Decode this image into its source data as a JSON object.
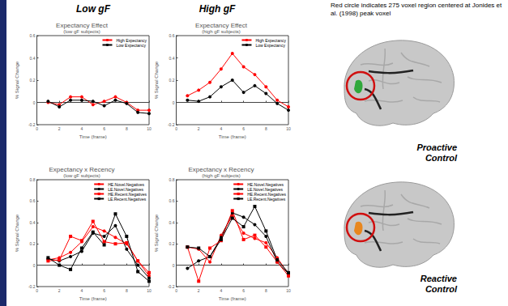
{
  "page": {
    "headings": [
      "Low gF",
      "High gF"
    ],
    "note": "Red circle indicates 275 voxel region centered at Jonides et al. (1998) peak voxel",
    "brain_labels": [
      "Proactive Control",
      "Reactive Control"
    ]
  },
  "chart_data": [
    {
      "type": "line",
      "title": "Expectancy Effect",
      "subtitle": "(low gF subjects)",
      "x_label": "Time (frame)",
      "y_label": "% Signal Change",
      "x": [
        1,
        2,
        3,
        4,
        5,
        6,
        7,
        8,
        9,
        10
      ],
      "xlim": [
        0,
        10
      ],
      "xticks": [
        0,
        2,
        4,
        6,
        8,
        10
      ],
      "ylim": [
        -0.2,
        0.6
      ],
      "yticks": [
        -0.2,
        0,
        0.2,
        0.4,
        0.6
      ],
      "grid": false,
      "legend": "upper right",
      "series": [
        {
          "name": "High Expectancy",
          "color": "#ff0000",
          "marker": "circle",
          "values": [
            0.0,
            -0.02,
            0.05,
            0.05,
            -0.02,
            0.01,
            0.05,
            0.0,
            -0.07,
            -0.07
          ]
        },
        {
          "name": "Low Expectancy",
          "color": "#000000",
          "marker": "circle",
          "values": [
            0.01,
            -0.04,
            0.02,
            0.02,
            0.01,
            -0.03,
            0.02,
            -0.01,
            -0.09,
            -0.1
          ]
        }
      ]
    },
    {
      "type": "line",
      "title": "Expectancy Effect",
      "subtitle": "(high gF subjects)",
      "x_label": "Time (frame)",
      "y_label": "% Signal Change",
      "x": [
        1,
        2,
        3,
        4,
        5,
        6,
        7,
        8,
        9,
        10
      ],
      "xlim": [
        0,
        10
      ],
      "xticks": [
        0,
        2,
        4,
        6,
        8,
        10
      ],
      "ylim": [
        -0.2,
        0.6
      ],
      "yticks": [
        -0.2,
        0,
        0.2,
        0.4,
        0.6
      ],
      "grid": false,
      "legend": "upper right",
      "series": [
        {
          "name": "High Expectancy",
          "color": "#ff0000",
          "marker": "circle",
          "values": [
            0.06,
            0.11,
            0.18,
            0.3,
            0.44,
            0.32,
            0.25,
            0.14,
            0.02,
            -0.04
          ]
        },
        {
          "name": "Low Expectancy",
          "color": "#000000",
          "marker": "circle",
          "values": [
            0.02,
            0.01,
            0.05,
            0.14,
            0.2,
            0.09,
            0.15,
            0.08,
            -0.01,
            -0.07
          ]
        }
      ]
    },
    {
      "type": "line",
      "title": "Expectancy x Recency",
      "subtitle": "(low gF subjects)",
      "x_label": "Time (frame)",
      "y_label": "% Signal Change",
      "x": [
        1,
        2,
        3,
        4,
        5,
        6,
        7,
        8,
        9,
        10
      ],
      "xlim": [
        0,
        10
      ],
      "xticks": [
        0,
        2,
        4,
        6,
        8,
        10
      ],
      "ylim": [
        -0.2,
        0.8
      ],
      "yticks": [
        -0.2,
        0,
        0.2,
        0.4,
        0.6,
        0.8
      ],
      "grid": false,
      "legend": "upper right",
      "series": [
        {
          "name": "HE.Novel.Negatives",
          "color": "#ff0000",
          "marker": "circle",
          "values": [
            0.05,
            0.07,
            0.12,
            0.22,
            0.36,
            0.32,
            0.26,
            0.2,
            0.04,
            -0.1
          ]
        },
        {
          "name": "LE.Novel.Negatives",
          "color": "#000000",
          "marker": "circle",
          "values": [
            0.06,
            0.04,
            0.08,
            0.13,
            0.3,
            0.27,
            0.37,
            0.15,
            0.0,
            -0.12
          ]
        },
        {
          "name": "HE.Recent.Negatives",
          "color": "#ff0000",
          "marker": "square",
          "values": [
            0.04,
            0.05,
            0.27,
            0.23,
            0.41,
            0.22,
            0.2,
            0.21,
            0.04,
            -0.07
          ]
        },
        {
          "name": "LE.Recent.Negatives",
          "color": "#000000",
          "marker": "square",
          "values": [
            0.07,
            0.0,
            -0.04,
            0.16,
            0.31,
            0.19,
            0.48,
            0.27,
            -0.06,
            -0.15
          ]
        }
      ]
    },
    {
      "type": "line",
      "title": "Expectancy x Recency",
      "subtitle": "(high gF subjects)",
      "x_label": "Time (frame)",
      "y_label": "% Signal Change",
      "x": [
        1,
        2,
        3,
        4,
        5,
        6,
        7,
        8,
        9,
        10
      ],
      "xlim": [
        0,
        10
      ],
      "xticks": [
        0,
        2,
        4,
        6,
        8,
        10
      ],
      "ylim": [
        -0.2,
        0.8
      ],
      "yticks": [
        -0.2,
        0,
        0.2,
        0.4,
        0.6,
        0.8
      ],
      "grid": false,
      "legend": "upper right",
      "series": [
        {
          "name": "HE.Novel.Negatives",
          "color": "#ff0000",
          "marker": "circle",
          "values": [
            0.17,
            0.15,
            0.03,
            0.28,
            0.46,
            0.3,
            0.25,
            0.21,
            0.07,
            -0.08
          ]
        },
        {
          "name": "LE.Novel.Negatives",
          "color": "#000000",
          "marker": "circle",
          "values": [
            -0.03,
            0.04,
            0.08,
            0.26,
            0.49,
            0.45,
            0.38,
            0.27,
            0.03,
            -0.08
          ]
        },
        {
          "name": "HE.Recent.Negatives",
          "color": "#ff0000",
          "marker": "square",
          "values": [
            0.17,
            -0.15,
            0.16,
            0.23,
            0.51,
            0.24,
            0.28,
            0.17,
            0.03,
            -0.1
          ]
        },
        {
          "name": "LE.Recent.Negatives",
          "color": "#000000",
          "marker": "square",
          "values": [
            0.17,
            0.16,
            0.08,
            0.24,
            0.44,
            0.36,
            0.55,
            0.32,
            0.05,
            -0.07
          ]
        }
      ]
    }
  ]
}
